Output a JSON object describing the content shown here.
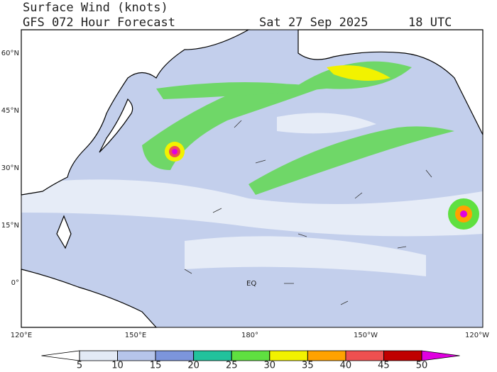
{
  "header": {
    "title": "Surface Wind (knots)",
    "subtitle": "GFS 072 Hour Forecast",
    "date": "Sat 27 Sep 2025",
    "time": "18 UTC"
  },
  "lat_labels": [
    "60°N",
    "45°N",
    "30°N",
    "15°N",
    "0°"
  ],
  "lon_labels": [
    "120°E",
    "150°E",
    "180°",
    "150°W",
    "120°W"
  ],
  "map_labels": [
    "EQ"
  ],
  "colorbar": {
    "ticks": [
      5,
      10,
      15,
      20,
      25,
      30,
      35,
      40,
      45,
      50
    ],
    "colors": [
      "#ffffff",
      "#e3eaf6",
      "#b6c5ea",
      "#7c95dc",
      "#22c29c",
      "#5fe040",
      "#f2f200",
      "#ffa200",
      "#ee5050",
      "#c00000",
      "#e000e0"
    ]
  }
}
